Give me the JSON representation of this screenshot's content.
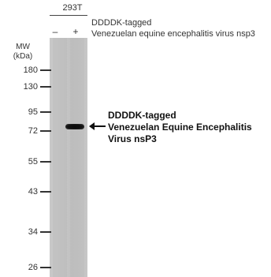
{
  "header": {
    "cell_line": "293T",
    "lane_minus": "–",
    "lane_plus": "+",
    "construct_line1": "DDDDK-tagged",
    "construct_line2": "Venezuelan equine encephalitis virus nsp3"
  },
  "mw": {
    "label_line1": "MW",
    "label_line2": "(kDa)",
    "markers": [
      "180",
      "130",
      "95",
      "72",
      "55",
      "43",
      "34",
      "26"
    ]
  },
  "annotation": {
    "line1": "DDDDK-tagged",
    "line2": "Venezuelan Equine Encephalitis",
    "line3": "Virus nsP3"
  },
  "colors": {
    "membrane": "#c6c6c6",
    "band": "#111111",
    "text": "#222222"
  }
}
